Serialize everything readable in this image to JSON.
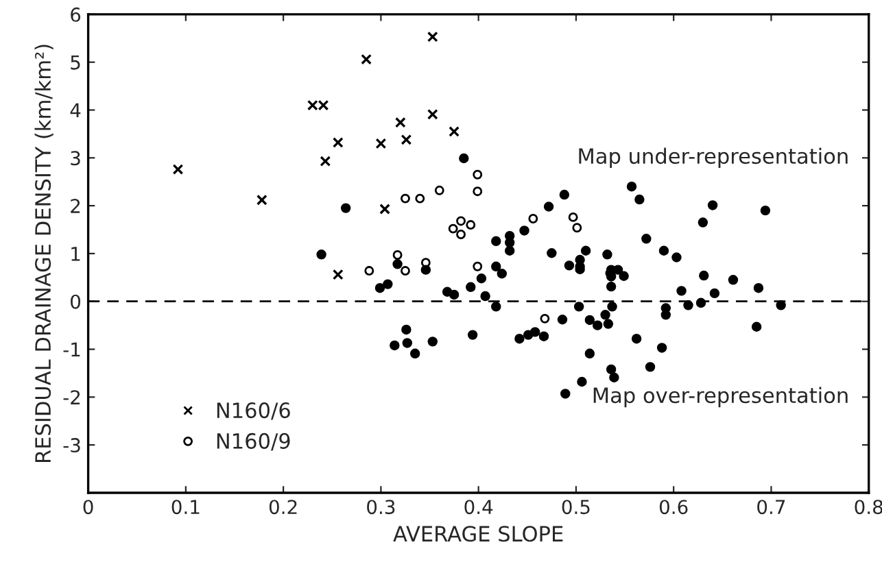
{
  "chart_data": {
    "type": "scatter",
    "xlabel": "AVERAGE SLOPE",
    "ylabel": "RESIDUAL DRAINAGE DENSITY (km/km²)",
    "xlim": [
      0,
      0.8
    ],
    "xticks": [
      0,
      0.1,
      0.2,
      0.3,
      0.4,
      0.5,
      0.6,
      0.7,
      0.8
    ],
    "ylim": [
      -4,
      6
    ],
    "yticks": [
      -3,
      -2,
      -1,
      0,
      1,
      2,
      3,
      4,
      5,
      6
    ],
    "grid": false,
    "legend": "bottom left",
    "ref_lines": [
      {
        "axis": "y",
        "value": 0,
        "color": "#000000",
        "line_style": "dashed"
      }
    ],
    "annotations": [
      "Map under-representation",
      "Map over-representation"
    ],
    "series": [
      {
        "name": "N160/6",
        "color": "#000000",
        "marker": "cross",
        "x": [
          0.092,
          0.178,
          0.23,
          0.241,
          0.243,
          0.256,
          0.285,
          0.3,
          0.32,
          0.326,
          0.304,
          0.256,
          0.353,
          0.353,
          0.375
        ],
        "values": [
          2.76,
          2.12,
          4.1,
          4.1,
          2.93,
          3.32,
          5.06,
          3.3,
          3.74,
          3.38,
          1.93,
          0.56,
          5.53,
          3.91,
          3.55
        ]
      },
      {
        "name": "N160/9",
        "color": "#000000",
        "marker": "circle",
        "x": [
          0.325,
          0.34,
          0.36,
          0.399,
          0.399,
          0.374,
          0.382,
          0.382,
          0.392,
          0.456,
          0.497,
          0.501,
          0.346,
          0.399,
          0.288,
          0.317,
          0.325,
          0.468
        ],
        "values": [
          2.15,
          2.15,
          2.32,
          2.65,
          2.3,
          1.52,
          1.68,
          1.4,
          1.6,
          1.73,
          1.76,
          1.54,
          0.81,
          0.73,
          0.64,
          0.97,
          0.64,
          -0.36
        ]
      },
      {
        "color": "#000000",
        "marker": "circle",
        "x": [
          0.264,
          0.239,
          0.317,
          0.299,
          0.307,
          0.314,
          0.326,
          0.327,
          0.385,
          0.488,
          0.472,
          0.557,
          0.565,
          0.64,
          0.694,
          0.63,
          0.572,
          0.447,
          0.418,
          0.432,
          0.432,
          0.432,
          0.475,
          0.51,
          0.493,
          0.504,
          0.504,
          0.504,
          0.59,
          0.603,
          0.532,
          0.536,
          0.543,
          0.535,
          0.549,
          0.536,
          0.346,
          0.418,
          0.424,
          0.403,
          0.631,
          0.392,
          0.368,
          0.375,
          0.407,
          0.418,
          0.503,
          0.486,
          0.514,
          0.522,
          0.533,
          0.53,
          0.537,
          0.536,
          0.562,
          0.588,
          0.576,
          0.514,
          0.506,
          0.489,
          0.608,
          0.615,
          0.628,
          0.642,
          0.685,
          0.442,
          0.451,
          0.458,
          0.467,
          0.394,
          0.353,
          0.335,
          0.661,
          0.687,
          0.71,
          0.592,
          0.592,
          0.536,
          0.539
        ],
        "values": [
          1.95,
          0.98,
          0.78,
          0.28,
          0.36,
          -0.92,
          -0.59,
          -0.87,
          2.99,
          2.23,
          1.98,
          2.4,
          2.13,
          2.01,
          1.9,
          1.65,
          1.31,
          1.48,
          1.26,
          1.37,
          1.23,
          1.06,
          1.01,
          1.06,
          0.75,
          0.87,
          0.73,
          0.67,
          1.06,
          0.92,
          0.98,
          0.66,
          0.66,
          0.59,
          0.53,
          0.52,
          0.66,
          0.73,
          0.58,
          0.48,
          0.54,
          0.3,
          0.2,
          0.14,
          0.11,
          -0.11,
          -0.11,
          -0.38,
          -0.39,
          -0.5,
          -0.47,
          -0.28,
          -0.11,
          0.31,
          -0.78,
          -0.97,
          -1.37,
          -1.09,
          -1.68,
          -1.93,
          0.22,
          -0.08,
          -0.03,
          0.17,
          -0.53,
          -0.78,
          -0.7,
          -0.64,
          -0.73,
          -0.7,
          -0.84,
          -1.09,
          0.45,
          0.28,
          -0.08,
          -0.14,
          -0.28,
          -1.42,
          -1.59
        ]
      }
    ]
  }
}
